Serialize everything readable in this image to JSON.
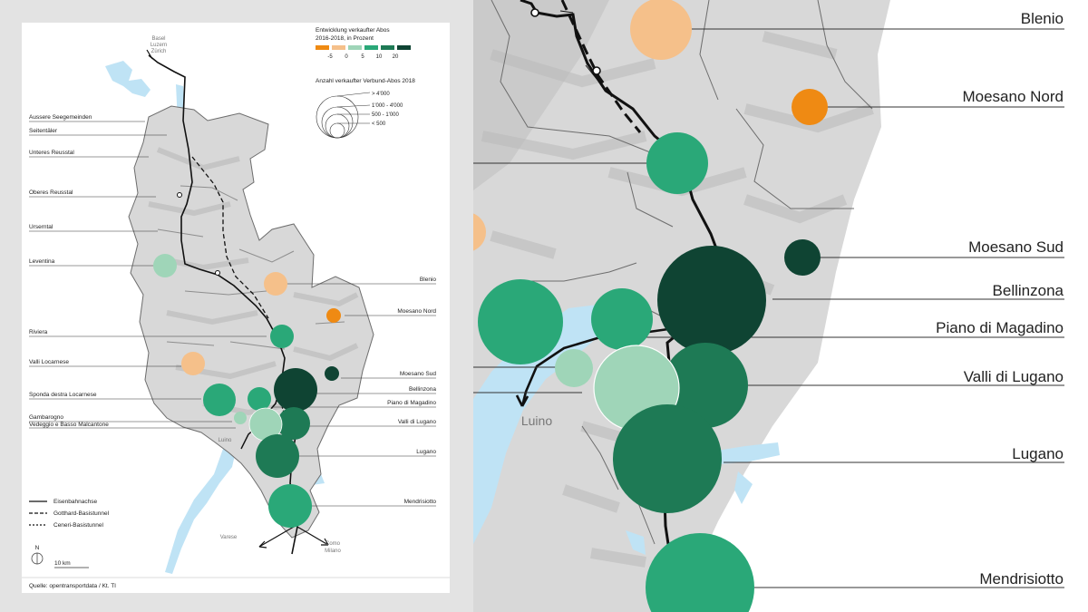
{
  "legend": {
    "change_title_1": "Entwicklung verkaufter Abos",
    "change_title_2": "2016-2018, in Prozent",
    "change_ticks": [
      "-5",
      "0",
      "5",
      "10",
      "20"
    ],
    "change_colors": [
      "#ef8a13",
      "#f5c08a",
      "#9fd5b8",
      "#2aa878",
      "#1e7a55",
      "#0f4433"
    ],
    "size_title": "Anzahl verkaufter Verbund-Abos 2018",
    "size_classes": [
      "> 4'000",
      "1'000 - 4'000",
      "500 - 1'000",
      "< 500"
    ],
    "lines": [
      "Eisenbahnachse",
      "Gotthard-Basistunnel",
      "Ceneri-Basistunnel"
    ],
    "north": "N",
    "scale": "10 km"
  },
  "source": "Quelle: opentransportdata / Kt. TI",
  "cities": {
    "north": [
      "Basel",
      "Luzern",
      "Zürich"
    ],
    "luino": "Luino",
    "varese": "Varese",
    "como": [
      "Como",
      "Milano"
    ]
  },
  "regions_left": [
    {
      "name": "Aussere Seegemeinden"
    },
    {
      "name": "Seitentäler"
    },
    {
      "name": "Unteres Reusstal"
    },
    {
      "name": "Oberes Reusstal"
    },
    {
      "name": "Urserntal"
    },
    {
      "name": "Leventina",
      "color": "#9fd5b8"
    },
    {
      "name": "Blenio",
      "color": "#f5c08a"
    },
    {
      "name": "Moesano Nord",
      "color": "#ef8a13"
    },
    {
      "name": "Riviera",
      "color": "#2aa878"
    },
    {
      "name": "Valli Locarnese",
      "color": "#f5c08a"
    },
    {
      "name": "Moesano Sud",
      "color": "#0f4433"
    },
    {
      "name": "Bellinzona",
      "color": "#0f4433"
    },
    {
      "name": "Sponda destra Locarnese",
      "color": "#2aa878"
    },
    {
      "name": "Piano di Magadino",
      "color": "#2aa878"
    },
    {
      "name": "Gambarogno",
      "color": "#9fd5b8"
    },
    {
      "name": "Vedeggio e Basso Malcantone",
      "color": "#9fd5b8"
    },
    {
      "name": "Valli di Lugano",
      "color": "#1e7a55"
    },
    {
      "name": "Lugano",
      "color": "#1e7a55"
    },
    {
      "name": "Mendrisiotto",
      "color": "#2aa878"
    }
  ],
  "regions_right": [
    "Blenio",
    "Moesano Nord",
    "Moesano Sud",
    "Bellinzona",
    "Piano di Magadino",
    "Valli di Lugano",
    "Lugano",
    "Mendrisiotto"
  ],
  "palette": {
    "lake": "#bfe3f5",
    "terrain": "#d8d8d8",
    "terrain_dark": "#b9b9b9",
    "border": "#6d6d6d"
  }
}
